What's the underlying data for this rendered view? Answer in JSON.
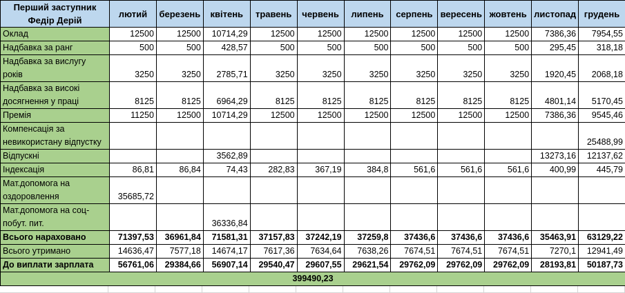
{
  "table": {
    "employee": "Перший заступник Федір Дерій",
    "months": [
      "лютий",
      "березень",
      "квітень",
      "травень",
      "червень",
      "липень",
      "серпень",
      "вересень",
      "жовтень",
      "листопад",
      "грудень"
    ],
    "rows": [
      {
        "label": "Оклад",
        "bold": false,
        "values": [
          "12500",
          "12500",
          "10714,29",
          "12500",
          "12500",
          "12500",
          "12500",
          "12500",
          "12500",
          "7386,36",
          "7954,55"
        ]
      },
      {
        "label": "Надбавка за ранг",
        "bold": false,
        "values": [
          "500",
          "500",
          "428,57",
          "500",
          "500",
          "500",
          "500",
          "500",
          "500",
          "295,45",
          "318,18"
        ]
      },
      {
        "label": "Надбавка за вислугу років",
        "bold": false,
        "values": [
          "3250",
          "3250",
          "2785,71",
          "3250",
          "3250",
          "3250",
          "3250",
          "3250",
          "3250",
          "1920,45",
          "2068,18"
        ]
      },
      {
        "label": "Надбавка за високі досягнення у праці",
        "bold": false,
        "values": [
          "8125",
          "8125",
          "6964,29",
          "8125",
          "8125",
          "8125",
          "8125",
          "8125",
          "8125",
          "4801,14",
          "5170,45"
        ]
      },
      {
        "label": "Премія",
        "bold": false,
        "values": [
          "11250",
          "12500",
          "10714,29",
          "12500",
          "12500",
          "12500",
          "12500",
          "12500",
          "12500",
          "7386,36",
          "9545,46"
        ]
      },
      {
        "label": "Компенсація за невикористану відпустку",
        "bold": false,
        "values": [
          "",
          "",
          "",
          "",
          "",
          "",
          "",
          "",
          "",
          "",
          "25488,99"
        ]
      },
      {
        "label": "Відпускні",
        "bold": false,
        "values": [
          "",
          "",
          "3562,89",
          "",
          "",
          "",
          "",
          "",
          "",
          "13273,16",
          "12137,62"
        ]
      },
      {
        "label": "Індексація",
        "bold": false,
        "values": [
          "86,81",
          "86,84",
          "74,43",
          "282,83",
          "367,19",
          "384,8",
          "561,6",
          "561,6",
          "561,6",
          "400,99",
          "445,79"
        ]
      },
      {
        "label": "Мат.допомога на оздоровлення",
        "bold": false,
        "values": [
          "35685,72",
          "",
          "",
          "",
          "",
          "",
          "",
          "",
          "",
          "",
          ""
        ]
      },
      {
        "label": "Мат.допомога на соц-побут. пит.",
        "bold": false,
        "values": [
          "",
          "",
          "36336,84",
          "",
          "",
          "",
          "",
          "",
          "",
          "",
          ""
        ]
      },
      {
        "label": "Всього нараховано",
        "bold": true,
        "values": [
          "71397,53",
          "36961,84",
          "71581,31",
          "37157,83",
          "37242,19",
          "37259,8",
          "37436,6",
          "37436,6",
          "37436,6",
          "35463,91",
          "63129,22"
        ]
      },
      {
        "label": "Всього утримано",
        "bold": false,
        "values": [
          "14636,47",
          "7577,18",
          "14674,17",
          "7617,36",
          "7634,64",
          "7638,26",
          "7674,51",
          "7674,51",
          "7674,51",
          "7270,1",
          "12941,49"
        ]
      },
      {
        "label": "До виплати зарплата",
        "bold": true,
        "values": [
          "56761,06",
          "29384,66",
          "56907,14",
          "29540,47",
          "29607,55",
          "29621,54",
          "29762,09",
          "29762,09",
          "29762,09",
          "28193,81",
          "50187,73"
        ]
      }
    ],
    "grand_total": "399490,23"
  },
  "colors": {
    "header_bg": "#BDD7EE",
    "label_bg": "#A9D08E",
    "grid": "#000000",
    "faint_grid": "#D4D4D4"
  }
}
